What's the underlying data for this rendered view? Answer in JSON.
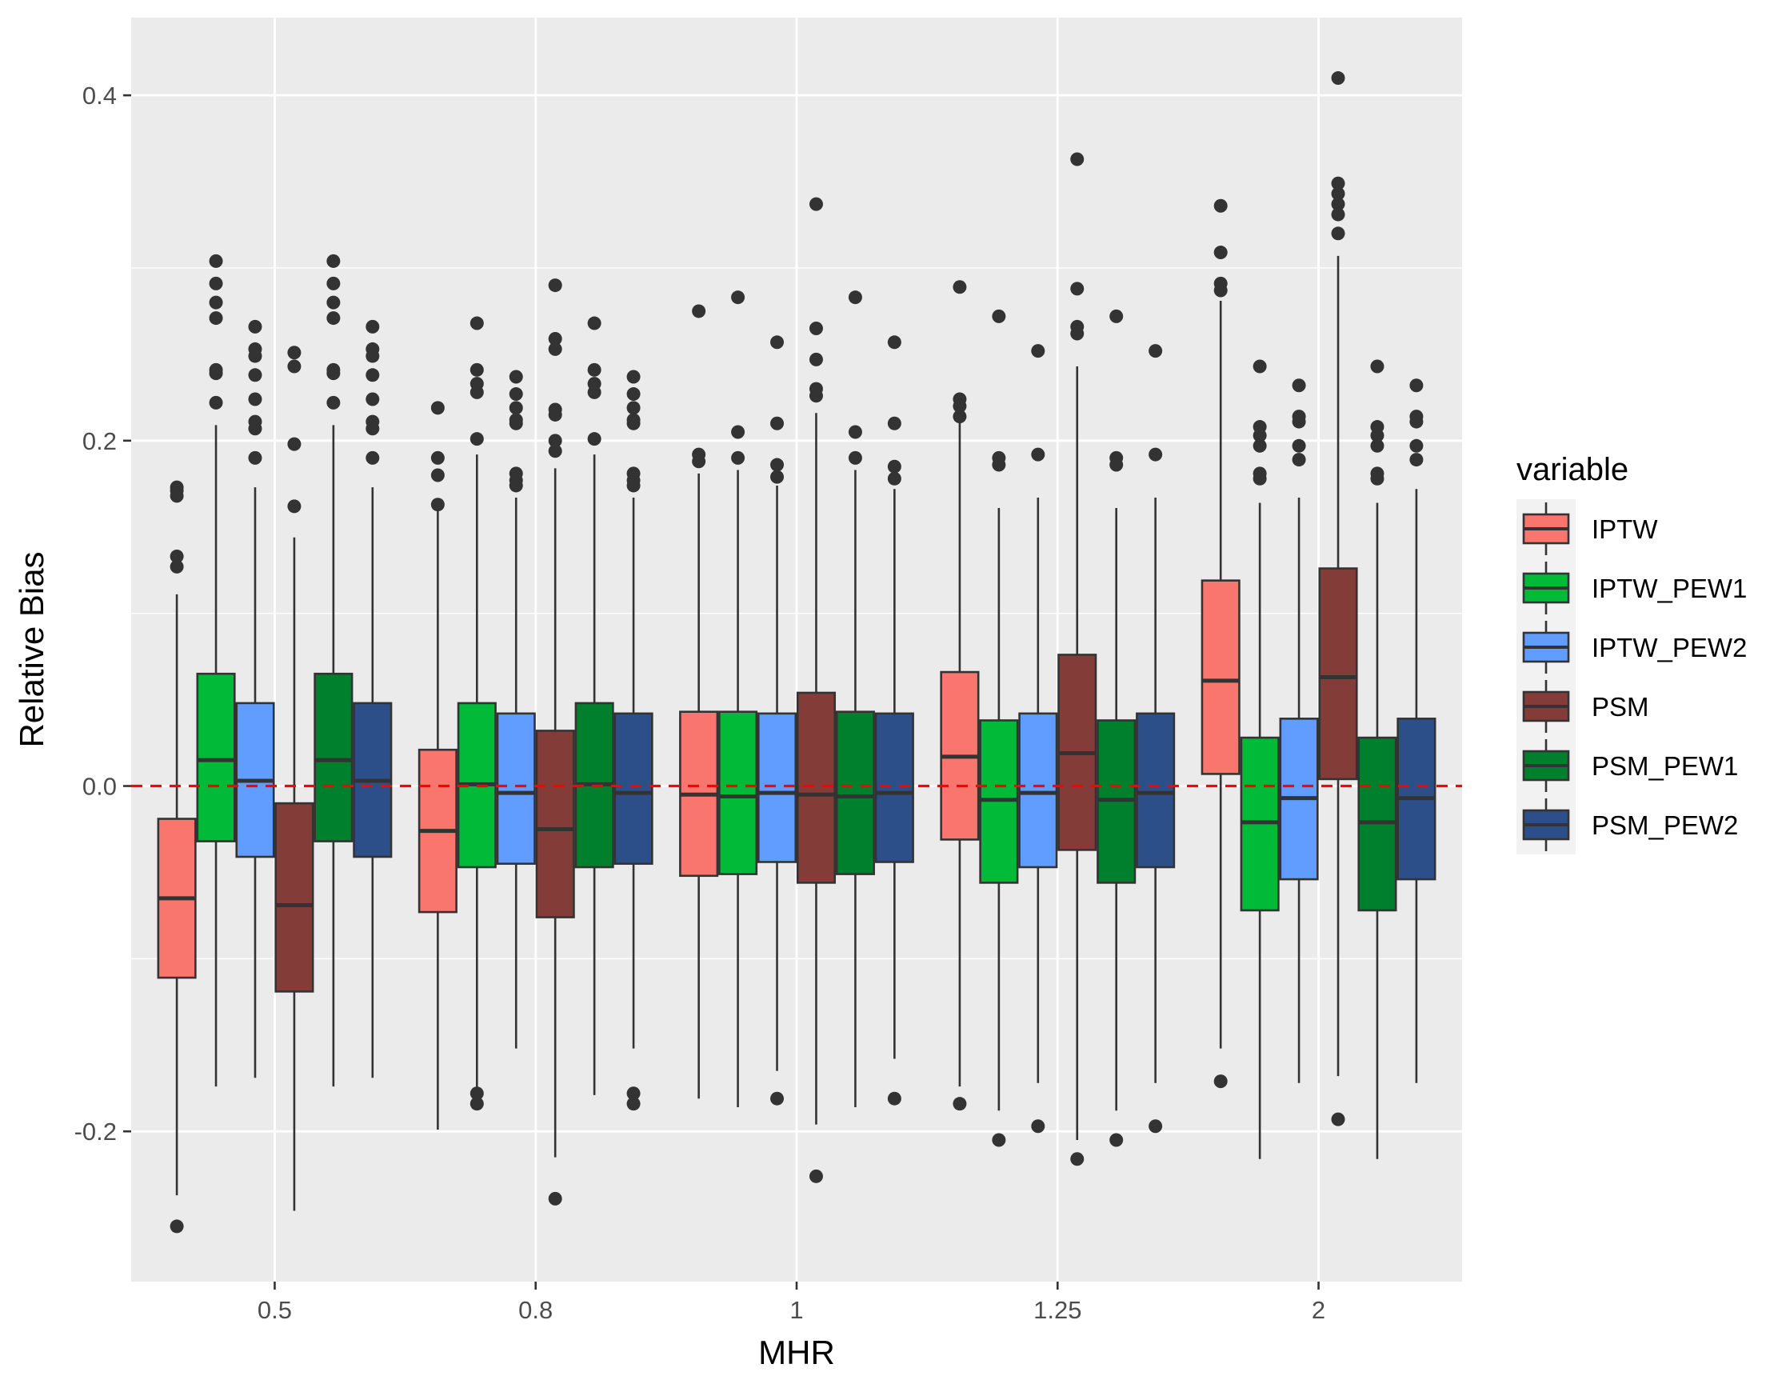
{
  "chart_data": {
    "type": "boxplot",
    "xlabel": "MHR",
    "ylabel": "Relative Bias",
    "categories": [
      "0.5",
      "0.8",
      "1",
      "1.25",
      "2"
    ],
    "ylim": [
      -0.287,
      0.445
    ],
    "y_ticks": [
      {
        "value": -0.2,
        "label": "-0.2"
      },
      {
        "value": 0.0,
        "label": "0.0"
      },
      {
        "value": 0.2,
        "label": "0.2"
      },
      {
        "value": 0.4,
        "label": "0.4"
      }
    ],
    "y_minor_ticks": [
      -0.1,
      0.1,
      0.3
    ],
    "reference_line": {
      "value": 0.0,
      "color": "#ff0000",
      "style": "dashed"
    },
    "legend": {
      "title": "variable",
      "position": "right"
    },
    "colors": {
      "panel": "#ebebeb",
      "grid": "#ffffff",
      "box_outline": "#333333"
    },
    "series": [
      {
        "name": "IPTW",
        "color": "#f8766d",
        "boxes": [
          {
            "whisker_low": -0.237,
            "q1": -0.111,
            "median": -0.065,
            "q3": -0.019,
            "whisker_high": 0.111,
            "outliers": [
              0.173,
              0.171,
              0.168,
              0.133,
              0.127,
              -0.255
            ]
          },
          {
            "whisker_low": -0.199,
            "q1": -0.073,
            "median": -0.026,
            "q3": 0.021,
            "whisker_high": 0.162,
            "outliers": [
              0.219,
              0.19,
              0.18,
              0.163
            ]
          },
          {
            "whisker_low": -0.181,
            "q1": -0.052,
            "median": -0.005,
            "q3": 0.043,
            "whisker_high": 0.181,
            "outliers": [
              0.275,
              0.192,
              0.188
            ]
          },
          {
            "whisker_low": -0.174,
            "q1": -0.031,
            "median": 0.017,
            "q3": 0.066,
            "whisker_high": 0.212,
            "outliers": [
              0.289,
              0.224,
              0.22,
              0.214,
              -0.184
            ]
          },
          {
            "whisker_low": -0.152,
            "q1": 0.007,
            "median": 0.061,
            "q3": 0.119,
            "whisker_high": 0.281,
            "outliers": [
              0.336,
              0.309,
              0.291,
              0.287,
              -0.171
            ]
          }
        ]
      },
      {
        "name": "IPTW_PEW1",
        "color": "#00ba38",
        "boxes": [
          {
            "whisker_low": -0.174,
            "q1": -0.032,
            "median": 0.015,
            "q3": 0.065,
            "whisker_high": 0.209,
            "outliers": [
              0.304,
              0.291,
              0.28,
              0.271,
              0.241,
              0.239,
              0.222
            ]
          },
          {
            "whisker_low": -0.179,
            "q1": -0.047,
            "median": 0.001,
            "q3": 0.048,
            "whisker_high": 0.192,
            "outliers": [
              0.268,
              0.241,
              0.233,
              0.228,
              0.201,
              -0.178,
              -0.184
            ]
          },
          {
            "whisker_low": -0.186,
            "q1": -0.051,
            "median": -0.006,
            "q3": 0.043,
            "whisker_high": 0.183,
            "outliers": [
              0.283,
              0.205,
              0.19
            ]
          },
          {
            "whisker_low": -0.188,
            "q1": -0.056,
            "median": -0.008,
            "q3": 0.038,
            "whisker_high": 0.161,
            "outliers": [
              0.272,
              0.19,
              0.186,
              -0.205
            ]
          },
          {
            "whisker_low": -0.216,
            "q1": -0.072,
            "median": -0.021,
            "q3": 0.028,
            "whisker_high": 0.164,
            "outliers": [
              0.243,
              0.208,
              0.203,
              0.197,
              0.181,
              0.178
            ]
          }
        ]
      },
      {
        "name": "IPTW_PEW2",
        "color": "#619cff",
        "boxes": [
          {
            "whisker_low": -0.169,
            "q1": -0.041,
            "median": 0.003,
            "q3": 0.048,
            "whisker_high": 0.173,
            "outliers": [
              0.266,
              0.253,
              0.249,
              0.238,
              0.224,
              0.211,
              0.207,
              0.19
            ]
          },
          {
            "whisker_low": -0.152,
            "q1": -0.045,
            "median": -0.004,
            "q3": 0.042,
            "whisker_high": 0.167,
            "outliers": [
              0.237,
              0.227,
              0.219,
              0.212,
              0.21,
              0.181,
              0.177,
              0.174
            ]
          },
          {
            "whisker_low": -0.165,
            "q1": -0.044,
            "median": -0.004,
            "q3": 0.042,
            "whisker_high": 0.174,
            "outliers": [
              0.257,
              0.21,
              0.186,
              0.179,
              -0.181
            ]
          },
          {
            "whisker_low": -0.172,
            "q1": -0.047,
            "median": -0.004,
            "q3": 0.042,
            "whisker_high": 0.167,
            "outliers": [
              0.252,
              0.192,
              -0.197
            ]
          },
          {
            "whisker_low": -0.172,
            "q1": -0.054,
            "median": -0.007,
            "q3": 0.039,
            "whisker_high": 0.167,
            "outliers": [
              0.232,
              0.214,
              0.211,
              0.197,
              0.189
            ]
          }
        ]
      },
      {
        "name": "PSM",
        "color": "#843c39",
        "boxes": [
          {
            "whisker_low": -0.246,
            "q1": -0.119,
            "median": -0.069,
            "q3": -0.01,
            "whisker_high": 0.144,
            "outliers": [
              0.251,
              0.243,
              0.198,
              0.162
            ]
          },
          {
            "whisker_low": -0.215,
            "q1": -0.076,
            "median": -0.025,
            "q3": 0.032,
            "whisker_high": 0.184,
            "outliers": [
              0.29,
              0.259,
              0.253,
              0.218,
              0.215,
              0.2,
              0.194,
              -0.239
            ]
          },
          {
            "whisker_low": -0.196,
            "q1": -0.056,
            "median": -0.005,
            "q3": 0.054,
            "whisker_high": 0.216,
            "outliers": [
              0.337,
              0.265,
              0.247,
              0.23,
              0.226,
              -0.226
            ]
          },
          {
            "whisker_low": -0.205,
            "q1": -0.037,
            "median": 0.019,
            "q3": 0.076,
            "whisker_high": 0.243,
            "outliers": [
              0.363,
              0.288,
              0.266,
              0.262,
              -0.216
            ]
          },
          {
            "whisker_low": -0.168,
            "q1": 0.004,
            "median": 0.063,
            "q3": 0.126,
            "whisker_high": 0.307,
            "outliers": [
              0.41,
              0.349,
              0.343,
              0.337,
              0.331,
              0.32,
              -0.193
            ]
          }
        ]
      },
      {
        "name": "PSM_PEW1",
        "color": "#007f2d",
        "boxes": [
          {
            "whisker_low": -0.174,
            "q1": -0.032,
            "median": 0.015,
            "q3": 0.065,
            "whisker_high": 0.209,
            "outliers": [
              0.304,
              0.291,
              0.28,
              0.271,
              0.241,
              0.239,
              0.222
            ]
          },
          {
            "whisker_low": -0.179,
            "q1": -0.047,
            "median": 0.001,
            "q3": 0.048,
            "whisker_high": 0.192,
            "outliers": [
              0.268,
              0.241,
              0.233,
              0.228,
              0.201
            ]
          },
          {
            "whisker_low": -0.186,
            "q1": -0.051,
            "median": -0.006,
            "q3": 0.043,
            "whisker_high": 0.183,
            "outliers": [
              0.283,
              0.205,
              0.19
            ]
          },
          {
            "whisker_low": -0.188,
            "q1": -0.056,
            "median": -0.008,
            "q3": 0.038,
            "whisker_high": 0.161,
            "outliers": [
              0.272,
              0.19,
              0.186,
              -0.205
            ]
          },
          {
            "whisker_low": -0.216,
            "q1": -0.072,
            "median": -0.021,
            "q3": 0.028,
            "whisker_high": 0.164,
            "outliers": [
              0.243,
              0.208,
              0.203,
              0.197,
              0.181,
              0.178
            ]
          }
        ]
      },
      {
        "name": "PSM_PEW2",
        "color": "#2c4f8a",
        "boxes": [
          {
            "whisker_low": -0.169,
            "q1": -0.041,
            "median": 0.003,
            "q3": 0.048,
            "whisker_high": 0.173,
            "outliers": [
              0.266,
              0.253,
              0.249,
              0.238,
              0.224,
              0.211,
              0.207,
              0.19
            ]
          },
          {
            "whisker_low": -0.152,
            "q1": -0.045,
            "median": -0.004,
            "q3": 0.042,
            "whisker_high": 0.167,
            "outliers": [
              0.237,
              0.227,
              0.219,
              0.212,
              0.21,
              0.181,
              0.177,
              0.174,
              -0.178,
              -0.184
            ]
          },
          {
            "whisker_low": -0.158,
            "q1": -0.044,
            "median": -0.004,
            "q3": 0.042,
            "whisker_high": 0.172,
            "outliers": [
              0.257,
              0.21,
              0.185,
              0.178,
              -0.181
            ]
          },
          {
            "whisker_low": -0.172,
            "q1": -0.047,
            "median": -0.004,
            "q3": 0.042,
            "whisker_high": 0.167,
            "outliers": [
              0.252,
              0.192,
              -0.197
            ]
          },
          {
            "whisker_low": -0.172,
            "q1": -0.054,
            "median": -0.007,
            "q3": 0.039,
            "whisker_high": 0.172,
            "outliers": [
              0.232,
              0.214,
              0.211,
              0.197,
              0.189
            ]
          }
        ]
      }
    ]
  }
}
